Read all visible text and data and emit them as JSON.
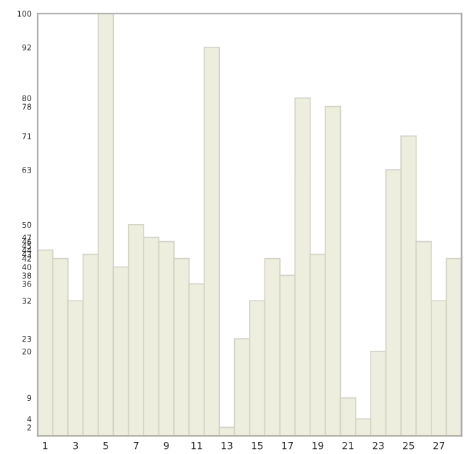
{
  "chart_data": {
    "type": "bar",
    "categories": [
      "1",
      null,
      "3",
      null,
      "5",
      null,
      "7",
      null,
      "9",
      null,
      "11",
      null,
      "13",
      null,
      "15",
      null,
      "17",
      null,
      "19",
      null,
      "21",
      null,
      "23",
      null,
      "25",
      null,
      "27",
      null
    ],
    "values": [
      44,
      42,
      32,
      43,
      100,
      40,
      50,
      47,
      46,
      42,
      36,
      92,
      2,
      23,
      32,
      42,
      38,
      80,
      43,
      78,
      9,
      4,
      20,
      63,
      71,
      46,
      32,
      42
    ],
    "color": "#eeeedf",
    "ylim": [
      0,
      100
    ],
    "yticks": [
      2,
      4,
      9,
      20,
      23,
      32,
      36,
      38,
      40,
      42,
      43,
      44,
      45,
      46,
      47,
      50,
      63,
      71,
      78,
      80,
      92,
      100
    ],
    "grid": false
  }
}
